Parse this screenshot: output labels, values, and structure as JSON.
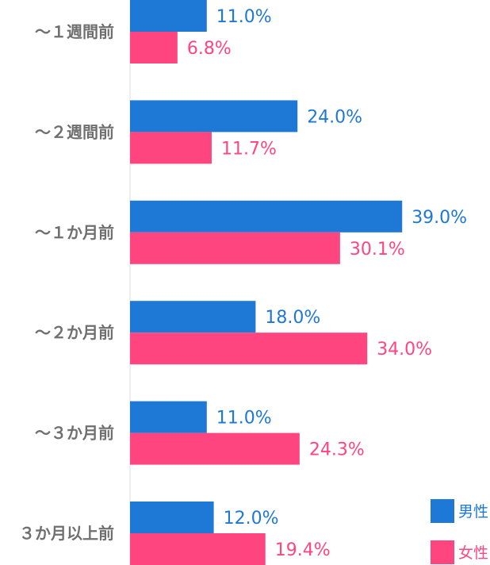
{
  "chart_data": {
    "type": "bar",
    "orientation": "horizontal",
    "categories": [
      "～１週間前",
      "～２週間前",
      "～１か月前",
      "～２か月前",
      "～３か月前",
      "３か月以上前"
    ],
    "series": [
      {
        "name": "男性",
        "color": "#1e78d6",
        "values": [
          11.0,
          24.0,
          39.0,
          18.0,
          11.0,
          12.0
        ],
        "labels": [
          "11.0%",
          "24.0%",
          "39.0%",
          "18.0%",
          "11.0%",
          "12.0%"
        ]
      },
      {
        "name": "女性",
        "color": "#ff4580",
        "values": [
          6.8,
          11.7,
          30.1,
          34.0,
          24.3,
          19.4
        ],
        "labels": [
          "6.8%",
          "11.7%",
          "30.1%",
          "34.0%",
          "24.3%",
          "19.4%"
        ]
      }
    ],
    "legend_position": "bottom-right",
    "grid": false,
    "xlim": [
      0,
      40
    ]
  }
}
